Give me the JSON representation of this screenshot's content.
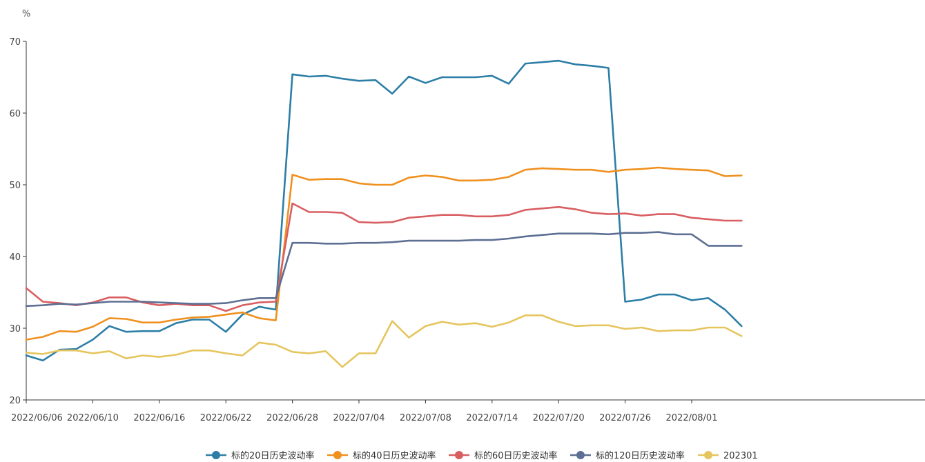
{
  "chart_data": {
    "type": "line",
    "ylabel": "%",
    "ylim": [
      20,
      70
    ],
    "yticks": [
      20,
      30,
      40,
      50,
      60,
      70
    ],
    "grid": false,
    "legend_position": "bottom-center",
    "x": [
      "2022/06/06",
      "2022/06/07",
      "2022/06/08",
      "2022/06/09",
      "2022/06/10",
      "2022/06/13",
      "2022/06/14",
      "2022/06/15",
      "2022/06/16",
      "2022/06/17",
      "2022/06/20",
      "2022/06/21",
      "2022/06/22",
      "2022/06/23",
      "2022/06/24",
      "2022/06/27",
      "2022/06/28",
      "2022/06/29",
      "2022/06/30",
      "2022/07/01",
      "2022/07/04",
      "2022/07/05",
      "2022/07/06",
      "2022/07/07",
      "2022/07/08",
      "2022/07/11",
      "2022/07/12",
      "2022/07/13",
      "2022/07/14",
      "2022/07/15",
      "2022/07/18",
      "2022/07/19",
      "2022/07/20",
      "2022/07/21",
      "2022/07/22",
      "2022/07/25",
      "2022/07/26",
      "2022/07/27",
      "2022/07/28",
      "2022/07/29",
      "2022/08/01",
      "2022/08/02",
      "2022/08/03",
      "2022/08/04"
    ],
    "xtick_labels": [
      "2022/06/06",
      "2022/06/10",
      "2022/06/16",
      "2022/06/22",
      "2022/06/28",
      "2022/07/04",
      "2022/07/08",
      "2022/07/14",
      "2022/07/20",
      "2022/07/26",
      "2022/08/01"
    ],
    "series": [
      {
        "name": "标的20日历史波动率",
        "color": "#2c7ea6",
        "values": [
          26.2,
          25.5,
          27.0,
          27.1,
          28.4,
          30.3,
          29.5,
          29.6,
          29.6,
          30.7,
          31.2,
          31.2,
          29.5,
          31.9,
          33.0,
          32.6,
          65.4,
          65.1,
          65.2,
          64.8,
          64.5,
          64.6,
          62.7,
          65.1,
          64.2,
          65.0,
          65.0,
          65.0,
          65.2,
          64.1,
          66.9,
          67.1,
          67.3,
          66.8,
          66.6,
          66.3,
          33.7,
          34.0,
          34.7,
          34.7,
          33.9,
          34.2,
          32.6,
          30.3
        ]
      },
      {
        "name": "标的40日历史波动率",
        "color": "#f0901e",
        "values": [
          28.4,
          28.8,
          29.6,
          29.5,
          30.2,
          31.4,
          31.3,
          30.8,
          30.8,
          31.2,
          31.5,
          31.6,
          31.9,
          32.2,
          31.4,
          31.1,
          51.4,
          50.7,
          50.8,
          50.8,
          50.2,
          50.0,
          50.0,
          51.0,
          51.3,
          51.1,
          50.6,
          50.6,
          50.7,
          51.1,
          52.1,
          52.3,
          52.2,
          52.1,
          52.1,
          51.8,
          52.1,
          52.2,
          52.4,
          52.2,
          52.1,
          52.0,
          51.2,
          51.3
        ]
      },
      {
        "name": "标的60日历史波动率",
        "color": "#d95e62",
        "values": [
          35.6,
          33.7,
          33.5,
          33.2,
          33.6,
          34.3,
          34.3,
          33.6,
          33.2,
          33.4,
          33.2,
          33.2,
          32.4,
          33.2,
          33.6,
          33.7,
          47.4,
          46.2,
          46.2,
          46.1,
          44.8,
          44.7,
          44.8,
          45.4,
          45.6,
          45.8,
          45.8,
          45.6,
          45.6,
          45.8,
          46.5,
          46.7,
          46.9,
          46.6,
          46.1,
          45.9,
          46.0,
          45.7,
          45.9,
          45.9,
          45.4,
          45.2,
          45.0,
          45.0
        ]
      },
      {
        "name": "标的120日历史波动率",
        "color": "#5d6f93",
        "values": [
          33.1,
          33.2,
          33.4,
          33.3,
          33.5,
          33.7,
          33.7,
          33.7,
          33.6,
          33.5,
          33.4,
          33.4,
          33.5,
          33.9,
          34.2,
          34.2,
          41.9,
          41.9,
          41.8,
          41.8,
          41.9,
          41.9,
          42.0,
          42.2,
          42.2,
          42.2,
          42.2,
          42.3,
          42.3,
          42.5,
          42.8,
          43.0,
          43.2,
          43.2,
          43.2,
          43.1,
          43.3,
          43.3,
          43.4,
          43.1,
          43.1,
          41.5,
          41.5,
          41.5
        ]
      },
      {
        "name": "202301",
        "color": "#e5c55e",
        "values": [
          26.6,
          26.4,
          26.9,
          26.9,
          26.5,
          26.8,
          25.8,
          26.2,
          26.0,
          26.3,
          26.9,
          26.9,
          26.5,
          26.2,
          28.0,
          27.7,
          26.7,
          26.5,
          26.8,
          24.6,
          26.5,
          26.5,
          31.0,
          28.7,
          30.3,
          30.9,
          30.5,
          30.7,
          30.2,
          30.8,
          31.8,
          31.8,
          30.9,
          30.3,
          30.4,
          30.4,
          29.9,
          30.1,
          29.6,
          29.7,
          29.7,
          30.1,
          30.1,
          28.9
        ]
      }
    ]
  }
}
